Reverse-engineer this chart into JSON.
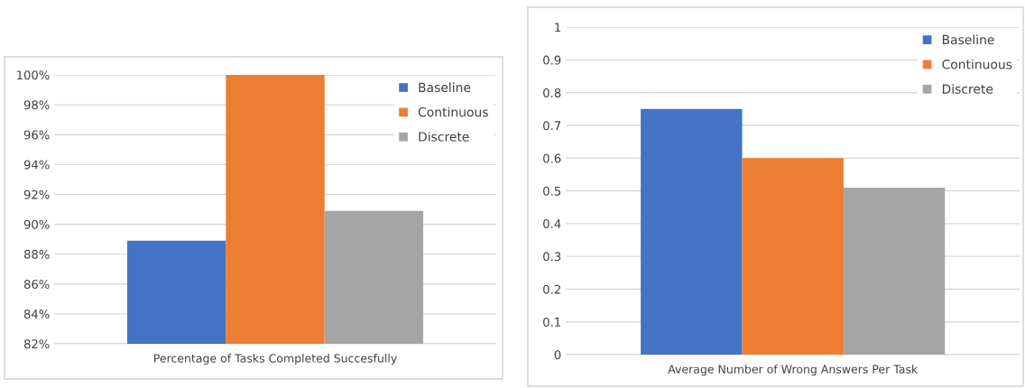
{
  "chart_data": [
    {
      "type": "bar",
      "categories": [
        "Percentage of Tasks Completed Succesfully"
      ],
      "series": [
        {
          "name": "Baseline",
          "color": "#4472c4",
          "values": [
            88.9
          ]
        },
        {
          "name": "Continuous",
          "color": "#ed7d31",
          "values": [
            100
          ]
        },
        {
          "name": "Discrete",
          "color": "#a5a5a5",
          "values": [
            90.9
          ]
        }
      ],
      "ylim": [
        82,
        100
      ],
      "yticks": [
        {
          "value": 82,
          "label": "82%"
        },
        {
          "value": 84,
          "label": "84%"
        },
        {
          "value": 86,
          "label": "86%"
        },
        {
          "value": 88,
          "label": "88%"
        },
        {
          "value": 90,
          "label": "90%"
        },
        {
          "value": 92,
          "label": "92%"
        },
        {
          "value": 94,
          "label": "94%"
        },
        {
          "value": 96,
          "label": "96%"
        },
        {
          "value": 98,
          "label": "98%"
        },
        {
          "value": 100,
          "label": "100%"
        }
      ],
      "grid": "y",
      "legend": "top right"
    },
    {
      "type": "bar",
      "categories": [
        "Average Number of Wrong Answers Per Task"
      ],
      "series": [
        {
          "name": "Baseline",
          "color": "#4472c4",
          "values": [
            0.75
          ]
        },
        {
          "name": "Continuous",
          "color": "#ed7d31",
          "values": [
            0.6
          ]
        },
        {
          "name": "Discrete",
          "color": "#a5a5a5",
          "values": [
            0.51
          ]
        }
      ],
      "ylim": [
        0,
        1
      ],
      "yticks": [
        0,
        0.1,
        0.2,
        0.3,
        0.4,
        0.5,
        0.6,
        0.7,
        0.8,
        0.9,
        1
      ],
      "grid": "y",
      "legend": "top right"
    }
  ]
}
